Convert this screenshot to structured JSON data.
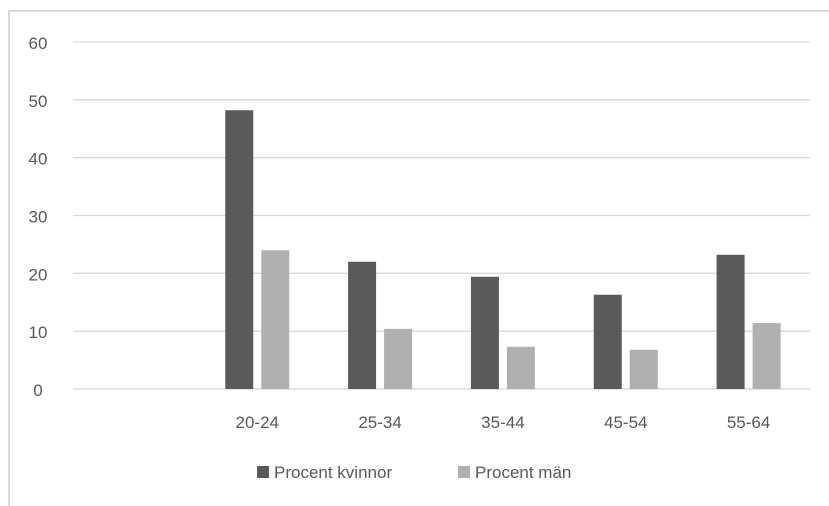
{
  "chart_data": {
    "type": "bar",
    "categories": [
      "",
      "20-24",
      "25-34",
      "35-44",
      "45-54",
      "55-64"
    ],
    "series": [
      {
        "name": "Procent kvinnor",
        "values": [
          null,
          48.2,
          22.0,
          19.4,
          16.3,
          23.2
        ],
        "color": "#5a5a5a"
      },
      {
        "name": "Procent män",
        "values": [
          null,
          24.0,
          10.4,
          7.3,
          6.8,
          11.4
        ],
        "color": "#b0b0b0"
      }
    ],
    "yticks": [
      "0",
      "10",
      "20",
      "30",
      "40",
      "50",
      "60"
    ],
    "ylim": [
      0,
      60
    ],
    "grid": true,
    "legend_position": "bottom"
  }
}
